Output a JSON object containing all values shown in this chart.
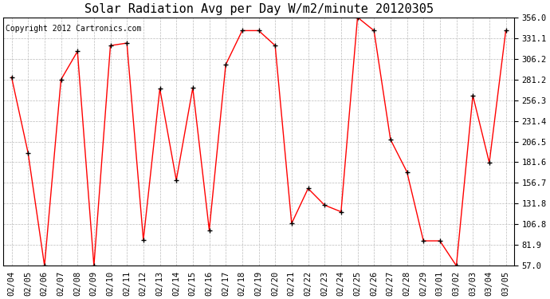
{
  "title": "Solar Radiation Avg per Day W/m2/minute 20120305",
  "copyright": "Copyright 2012 Cartronics.com",
  "dates": [
    "02/04",
    "02/05",
    "02/06",
    "02/07",
    "02/08",
    "02/09",
    "02/10",
    "02/11",
    "02/12",
    "02/13",
    "02/14",
    "02/15",
    "02/16",
    "02/17",
    "02/18",
    "02/19",
    "02/20",
    "02/21",
    "02/22",
    "02/23",
    "02/24",
    "02/25",
    "02/26",
    "02/27",
    "02/28",
    "02/29",
    "03/01",
    "03/02",
    "03/03",
    "03/04",
    "03/05"
  ],
  "values": [
    284,
    193,
    57,
    281,
    315,
    57,
    322,
    325,
    88,
    270,
    160,
    271,
    100,
    299,
    340,
    340,
    322,
    108,
    150,
    130,
    122,
    356,
    340,
    209,
    170,
    87,
    87,
    57,
    262,
    181,
    340
  ],
  "line_color": "#ff0000",
  "marker": "+",
  "marker_size": 5,
  "marker_color": "#000000",
  "bg_color": "#ffffff",
  "plot_bg_color": "#ffffff",
  "grid_color": "#bbbbbb",
  "grid_style": "--",
  "yticks": [
    57.0,
    81.9,
    106.8,
    131.8,
    156.7,
    181.6,
    206.5,
    231.4,
    256.3,
    281.2,
    306.2,
    331.1,
    356.0
  ],
  "ylim": [
    57.0,
    356.0
  ],
  "title_fontsize": 11,
  "copyright_fontsize": 7,
  "tick_fontsize": 7.5
}
